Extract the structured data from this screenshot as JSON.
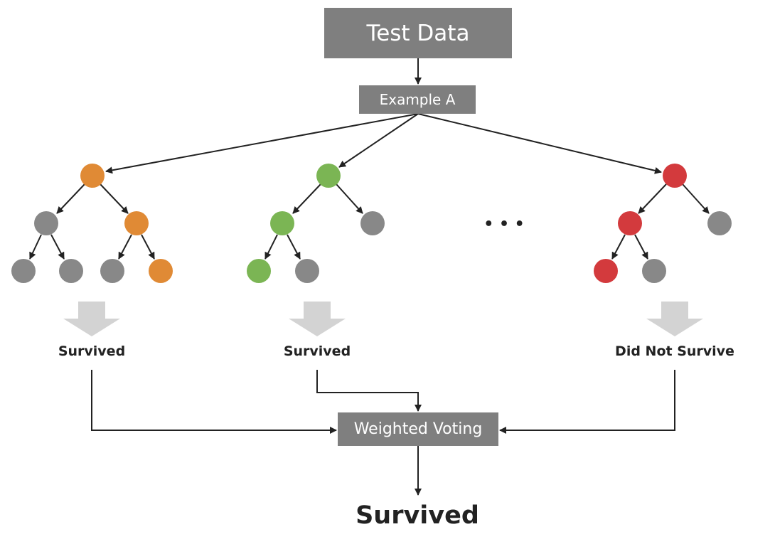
{
  "title": "Test Data",
  "example_label": "Example A",
  "ellipsis": "• • •",
  "trees": [
    {
      "prediction": "Survived"
    },
    {
      "prediction": "Survived"
    },
    {
      "prediction": "Did Not Survive"
    }
  ],
  "aggregator_label": "Weighted Voting",
  "final_prediction": "Survived",
  "colors": {
    "box": "#7f7f7f",
    "box_text": "#ffffff",
    "node_gray": "#888888",
    "path_orange": "#e08a35",
    "path_green": "#7bb554",
    "path_red": "#d33a3d",
    "result_arrow": "#d3d3d3",
    "edge": "#222222"
  },
  "icons": {
    "down_arrow": "block-down-arrow-icon",
    "tree_node": "circle-node-icon"
  }
}
